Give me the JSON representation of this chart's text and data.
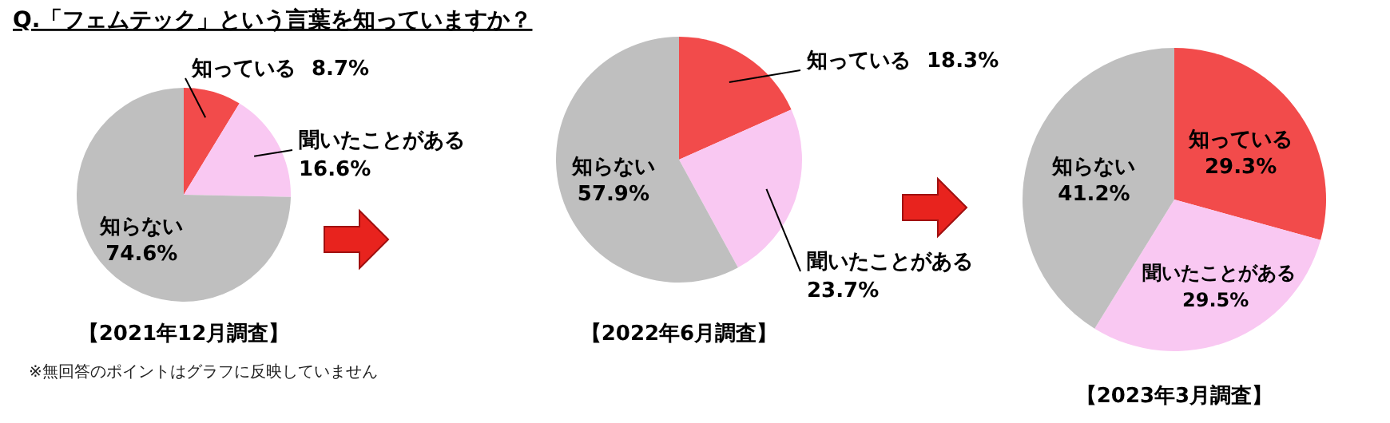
{
  "chart_data": [
    {
      "type": "pie",
      "title": "【2021年12月調査】",
      "annotations": [
        "Q.「フェムテック」という言葉を知っていますか？",
        "※無回答のポイントはグラフに反映していません"
      ],
      "categories": [
        "知っている",
        "聞いたことがある",
        "知らない"
      ],
      "values": [
        8.7,
        16.6,
        74.6
      ],
      "value_labels": [
        "8.7%",
        "16.6%",
        "74.6%"
      ],
      "colors": [
        "#f24b4b",
        "#f9c8f2",
        "#bfbfbf"
      ]
    },
    {
      "type": "pie",
      "title": "【2022年6月調査】",
      "categories": [
        "知っている",
        "聞いたことがある",
        "知らない"
      ],
      "values": [
        18.3,
        23.7,
        57.9
      ],
      "value_labels": [
        "18.3%",
        "23.7%",
        "57.9%"
      ],
      "colors": [
        "#f24b4b",
        "#f9c8f2",
        "#bfbfbf"
      ]
    },
    {
      "type": "pie",
      "title": "【2023年3月調査】",
      "categories": [
        "知っている",
        "聞いたことがある",
        "知らない"
      ],
      "values": [
        29.3,
        29.5,
        41.2
      ],
      "value_labels": [
        "29.3%",
        "29.5%",
        "41.2%"
      ],
      "colors": [
        "#f24b4b",
        "#f9c8f2",
        "#bfbfbf"
      ]
    }
  ]
}
